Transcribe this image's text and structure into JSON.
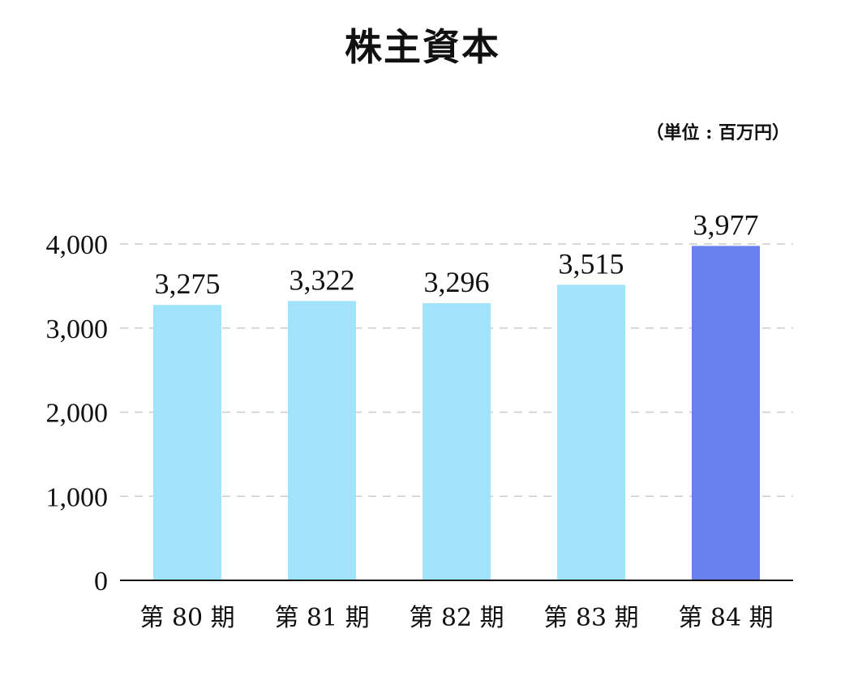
{
  "chart_data": {
    "type": "bar",
    "title": "株主資本",
    "unit": "（単位 : 百万円）",
    "categories": [
      "第 80 期",
      "第 81 期",
      "第 82 期",
      "第 83 期",
      "第 84 期"
    ],
    "values": [
      3275,
      3322,
      3296,
      3515,
      3977
    ],
    "value_labels": [
      "3,275",
      "3,322",
      "3,296",
      "3,515",
      "3,977"
    ],
    "yticks": [
      0,
      1000,
      2000,
      3000,
      4000
    ],
    "ytick_labels": [
      "0",
      "1,000",
      "2,000",
      "3,000",
      "4,000"
    ],
    "ylim": [
      0,
      4000
    ],
    "grid": true,
    "colors": {
      "bar": "#a2e3fc",
      "highlight_bar": "#6780ee",
      "grid": "#cccccc",
      "axis": "#111111"
    },
    "highlight_index": 4
  }
}
